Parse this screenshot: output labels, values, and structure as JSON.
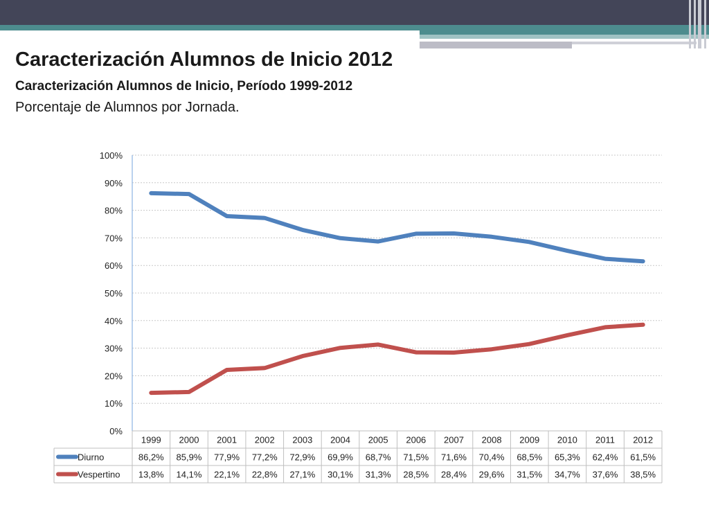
{
  "slide": {
    "title": "Caracterización Alumnos de Inicio 2012",
    "subtitle": "Caracterización Alumnos de Inicio, Período 1999-2012",
    "subtitle2": "Porcentaje de Alumnos por Jornada."
  },
  "chart_data": {
    "type": "line",
    "title": "",
    "xlabel": "",
    "ylabel": "",
    "categories": [
      "1999",
      "2000",
      "2001",
      "2002",
      "2003",
      "2004",
      "2005",
      "2006",
      "2007",
      "2008",
      "2009",
      "2010",
      "2011",
      "2012"
    ],
    "y_ticks": [
      "0%",
      "10%",
      "20%",
      "30%",
      "40%",
      "50%",
      "60%",
      "70%",
      "80%",
      "90%",
      "100%"
    ],
    "ylim": [
      0,
      100
    ],
    "grid": true,
    "legend": "data-table-left",
    "series": [
      {
        "name": "Diurno",
        "color": "#4f81bd",
        "values": [
          86.2,
          85.9,
          77.9,
          77.2,
          72.9,
          69.9,
          68.7,
          71.5,
          71.6,
          70.4,
          68.5,
          65.3,
          62.4,
          61.5
        ],
        "labels": [
          "86,2%",
          "85,9%",
          "77,9%",
          "77,2%",
          "72,9%",
          "69,9%",
          "68,7%",
          "71,5%",
          "71,6%",
          "70,4%",
          "68,5%",
          "65,3%",
          "62,4%",
          "61,5%"
        ]
      },
      {
        "name": "Vespertino",
        "color": "#c0504d",
        "values": [
          13.8,
          14.1,
          22.1,
          22.8,
          27.1,
          30.1,
          31.3,
          28.5,
          28.4,
          29.6,
          31.5,
          34.7,
          37.6,
          38.5
        ],
        "labels": [
          "13,8%",
          "14,1%",
          "22,1%",
          "22,8%",
          "27,1%",
          "30,1%",
          "31,3%",
          "28,5%",
          "28,4%",
          "29,6%",
          "31,5%",
          "34,7%",
          "37,6%",
          "38,5%"
        ]
      }
    ]
  }
}
